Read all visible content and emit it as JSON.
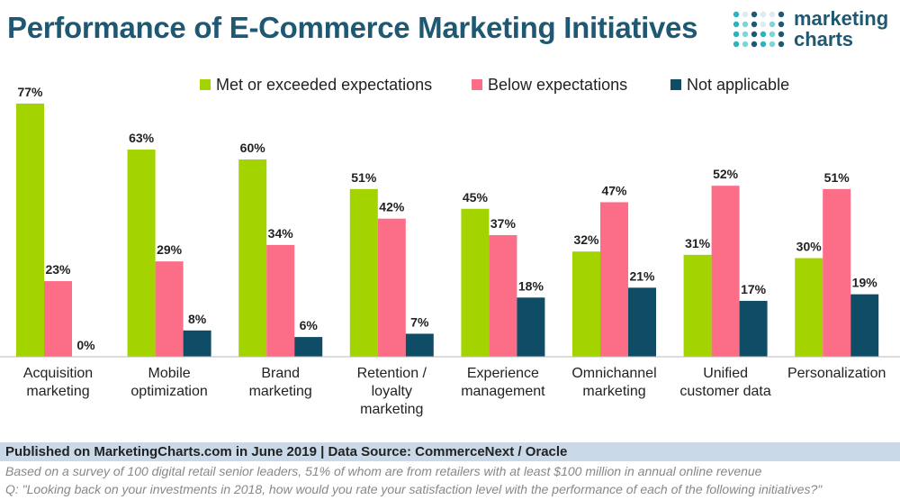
{
  "title": "Performance of E-Commerce Marketing Initiatives",
  "logo": {
    "line1": "marketing",
    "line2": "charts"
  },
  "footer": {
    "source": "Published on MarketingCharts.com in June 2019 | Data Source: CommerceNext / Oracle",
    "note1": "Based on a survey of 100 digital retail senior leaders, 51% of whom are from retailers with at least $100 million in annual online revenue",
    "note2": "Q: \"Looking back on your investments in 2018, how would you rate your satisfaction level with the performance of each of the following initiatives?\""
  },
  "colors": {
    "green": "#a4d400",
    "pink": "#fc6e87",
    "navy": "#0f4d66",
    "title": "#1e5873",
    "footer_bg": "#c9d9e8"
  },
  "chart_data": {
    "type": "bar",
    "categories": [
      [
        "Acquisition",
        "marketing"
      ],
      [
        "Mobile",
        "optimization"
      ],
      [
        "Brand",
        "marketing"
      ],
      [
        "Retention /",
        "loyalty",
        "marketing"
      ],
      [
        "Experience",
        "management"
      ],
      [
        "Omnichannel",
        "marketing"
      ],
      [
        "Unified",
        "customer data"
      ],
      [
        "Personalization"
      ]
    ],
    "series": [
      {
        "name": "Met or exceeded expectations",
        "color": "#a4d400",
        "values": [
          77,
          63,
          60,
          51,
          45,
          32,
          31,
          30
        ]
      },
      {
        "name": "Below expectations",
        "color": "#fc6e87",
        "values": [
          23,
          29,
          34,
          42,
          37,
          47,
          52,
          51
        ]
      },
      {
        "name": "Not applicable",
        "color": "#0f4d66",
        "values": [
          0,
          8,
          6,
          7,
          18,
          21,
          17,
          19
        ]
      }
    ],
    "value_suffix": "%",
    "ylim": [
      0,
      80
    ],
    "grid": false,
    "legend": "top-center"
  }
}
